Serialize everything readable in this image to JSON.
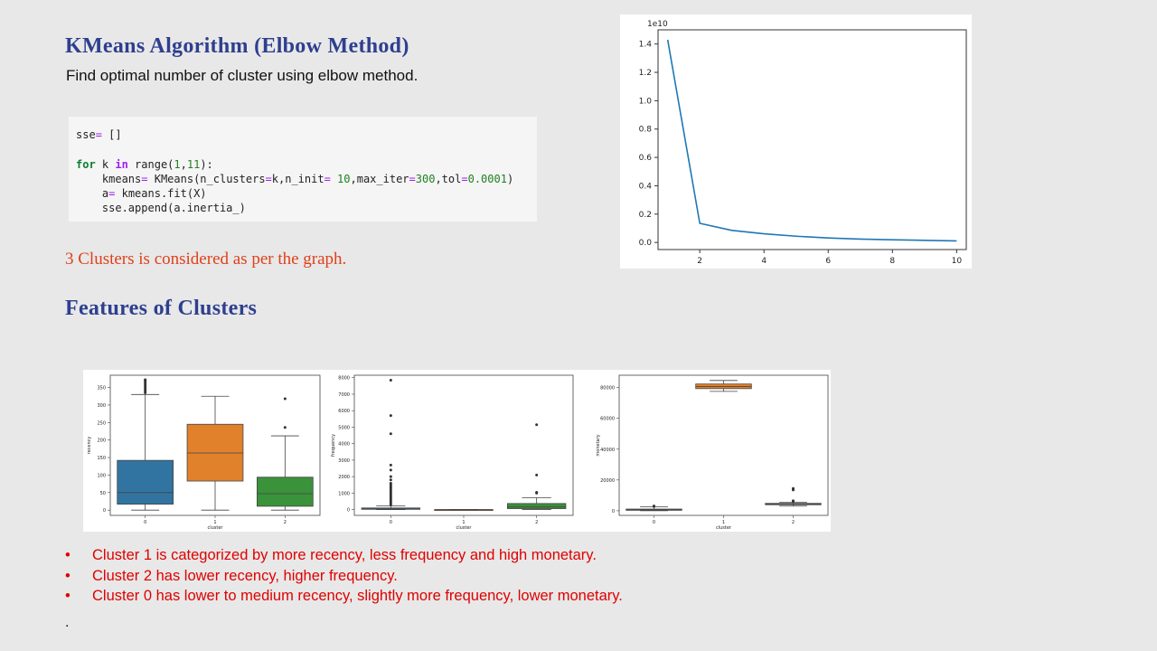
{
  "heading": "KMeans Algorithm (Elbow Method)",
  "subheading": "Find optimal number of cluster using elbow method.",
  "code": {
    "line1": {
      "var": "sse",
      "op": "=",
      "rest": " []"
    },
    "line2": {
      "kw_for": "for",
      "var": " k ",
      "kw_in": "in",
      "rest1": " range(",
      "n1": "1",
      "comma": ",",
      "n2": "11",
      "rest2": "):"
    },
    "line3": {
      "indent": "    ",
      "t1": "kmeans",
      "op1": "=",
      "t2": " KMeans(n_clusters",
      "op2": "=",
      "t3": "k,n_init",
      "op3": "=",
      "n1": " 10",
      "t4": ",max_iter",
      "op4": "=",
      "n2": "300",
      "t5": ",tol",
      "op5": "=",
      "n3": "0.0001",
      "t6": ")"
    },
    "line4": {
      "indent": "    ",
      "t1": "a",
      "op1": "=",
      "t2": " kmeans.fit(X)"
    },
    "line5": {
      "indent": "    ",
      "t1": "sse.append(a.inertia_)"
    }
  },
  "note": "3 Clusters is considered as per the graph.",
  "features_heading": "Features of Clusters",
  "bullets": [
    "Cluster 1 is categorized by more recency, less frequency and high monetary.",
    "Cluster 2 has lower recency, higher frequency.",
    "Cluster 0 has lower to medium recency, slightly more frequency, lower monetary."
  ],
  "bullet_glyph": "•",
  "trailing": ".",
  "colors": {
    "series": "#1f77b4",
    "cluster0": "#3274a1",
    "cluster1": "#e1812c",
    "cluster2": "#3a923a"
  },
  "chart_data": [
    {
      "type": "line",
      "x": [
        1,
        2,
        3,
        4,
        5,
        6,
        7,
        8,
        9,
        10
      ],
      "y": [
        14300000000.0,
        1350000000.0,
        850000000.0,
        610000000.0,
        440000000.0,
        320000000.0,
        240000000.0,
        190000000.0,
        150000000.0,
        110000000.0
      ],
      "offset_label": "1e10",
      "xticks": [
        "2",
        "4",
        "6",
        "8",
        "10"
      ],
      "yticks": [
        "0.0",
        "0.2",
        "0.4",
        "0.6",
        "0.8",
        "1.0",
        "1.2",
        "1.4"
      ],
      "xlim": [
        0.7,
        10.3
      ],
      "ylim": [
        -0.05,
        1.5
      ]
    },
    {
      "type": "box",
      "ylabel": "recency",
      "xlabel": "cluster",
      "categories": [
        "0",
        "1",
        "2"
      ],
      "yticks": [
        "0",
        "50",
        "100",
        "150",
        "200",
        "250",
        "300",
        "350"
      ],
      "ylim": [
        -15,
        385
      ],
      "boxes": [
        {
          "min": 0,
          "q1": 17,
          "median": 50,
          "q3": 142,
          "max": 330,
          "outliers": [
            335,
            340,
            345,
            350,
            355,
            360,
            365,
            370,
            372
          ]
        },
        {
          "min": 0,
          "q1": 83,
          "median": 163,
          "q3": 245,
          "max": 325,
          "outliers": []
        },
        {
          "min": 0,
          "q1": 11,
          "median": 47,
          "q3": 94,
          "max": 212,
          "outliers": [
            236,
            318
          ]
        }
      ]
    },
    {
      "type": "box",
      "ylabel": "frequency",
      "xlabel": "cluster",
      "categories": [
        "0",
        "1",
        "2"
      ],
      "yticks": [
        "0",
        "1000",
        "2000",
        "3000",
        "4000",
        "5000",
        "6000",
        "7000",
        "8000"
      ],
      "ylim": [
        -350,
        8150
      ],
      "boxes": [
        {
          "min": 1,
          "q1": 17,
          "median": 40,
          "q3": 100,
          "max": 220,
          "outliers": [
            300,
            400,
            500,
            600,
            700,
            800,
            900,
            1000,
            1100,
            1200,
            1300,
            1400,
            1500,
            1600,
            1800,
            2000,
            2400,
            2700,
            4600,
            5700,
            7850
          ]
        },
        {
          "min": 0,
          "q1": 0,
          "median": 0,
          "q3": 0,
          "max": 0,
          "outliers": []
        },
        {
          "min": 10,
          "q1": 60,
          "median": 160,
          "q3": 370,
          "max": 720,
          "outliers": [
            1000,
            1050,
            2100,
            5150
          ]
        }
      ]
    },
    {
      "type": "box",
      "ylabel": "monetary",
      "xlabel": "cluster",
      "categories": [
        "0",
        "1",
        "2"
      ],
      "yticks": [
        "0",
        "20000",
        "40000",
        "60000",
        "80000"
      ],
      "ylim": [
        -3000,
        88000
      ],
      "boxes": [
        {
          "min": 0,
          "q1": 300,
          "median": 600,
          "q3": 1100,
          "max": 2500,
          "outliers": [
            2800,
            3100
          ]
        },
        {
          "min": 77500,
          "q1": 79300,
          "median": 80700,
          "q3": 82300,
          "max": 84600,
          "outliers": []
        },
        {
          "min": 3000,
          "q1": 3900,
          "median": 4300,
          "q3": 4800,
          "max": 5500,
          "outliers": [
            6000,
            6500,
            13500,
            14500
          ]
        }
      ]
    }
  ]
}
